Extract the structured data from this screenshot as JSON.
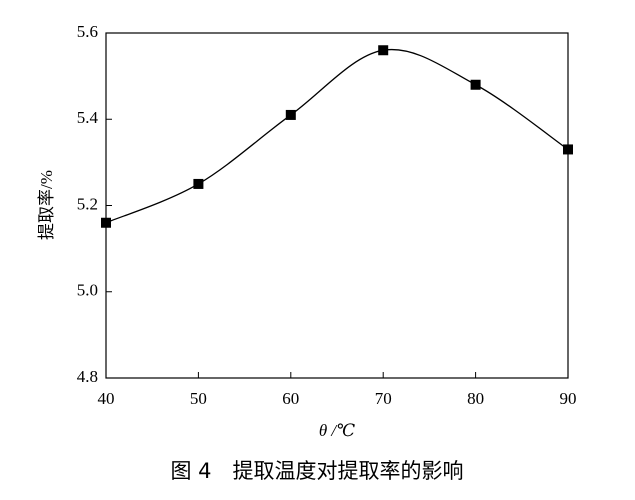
{
  "chart_data": {
    "type": "line",
    "title": "图 4　提取温度对提取率的影响",
    "x_label": "θ /℃",
    "y_label": "提取率/%",
    "x": [
      40,
      50,
      60,
      70,
      80,
      90
    ],
    "series": [
      {
        "name": "提取率",
        "color": "#000000",
        "values": [
          5.16,
          5.25,
          5.41,
          5.56,
          5.48,
          5.33
        ]
      }
    ],
    "xlim": [
      40,
      90
    ],
    "xticks": [
      40,
      50,
      60,
      70,
      80,
      90
    ],
    "ylim": [
      4.8,
      5.6
    ],
    "yticks": [
      4.8,
      {
        "value": 5,
        "label": "5.0"
      },
      5.2,
      5.4,
      5.6
    ],
    "grid": false,
    "smooth": true
  }
}
